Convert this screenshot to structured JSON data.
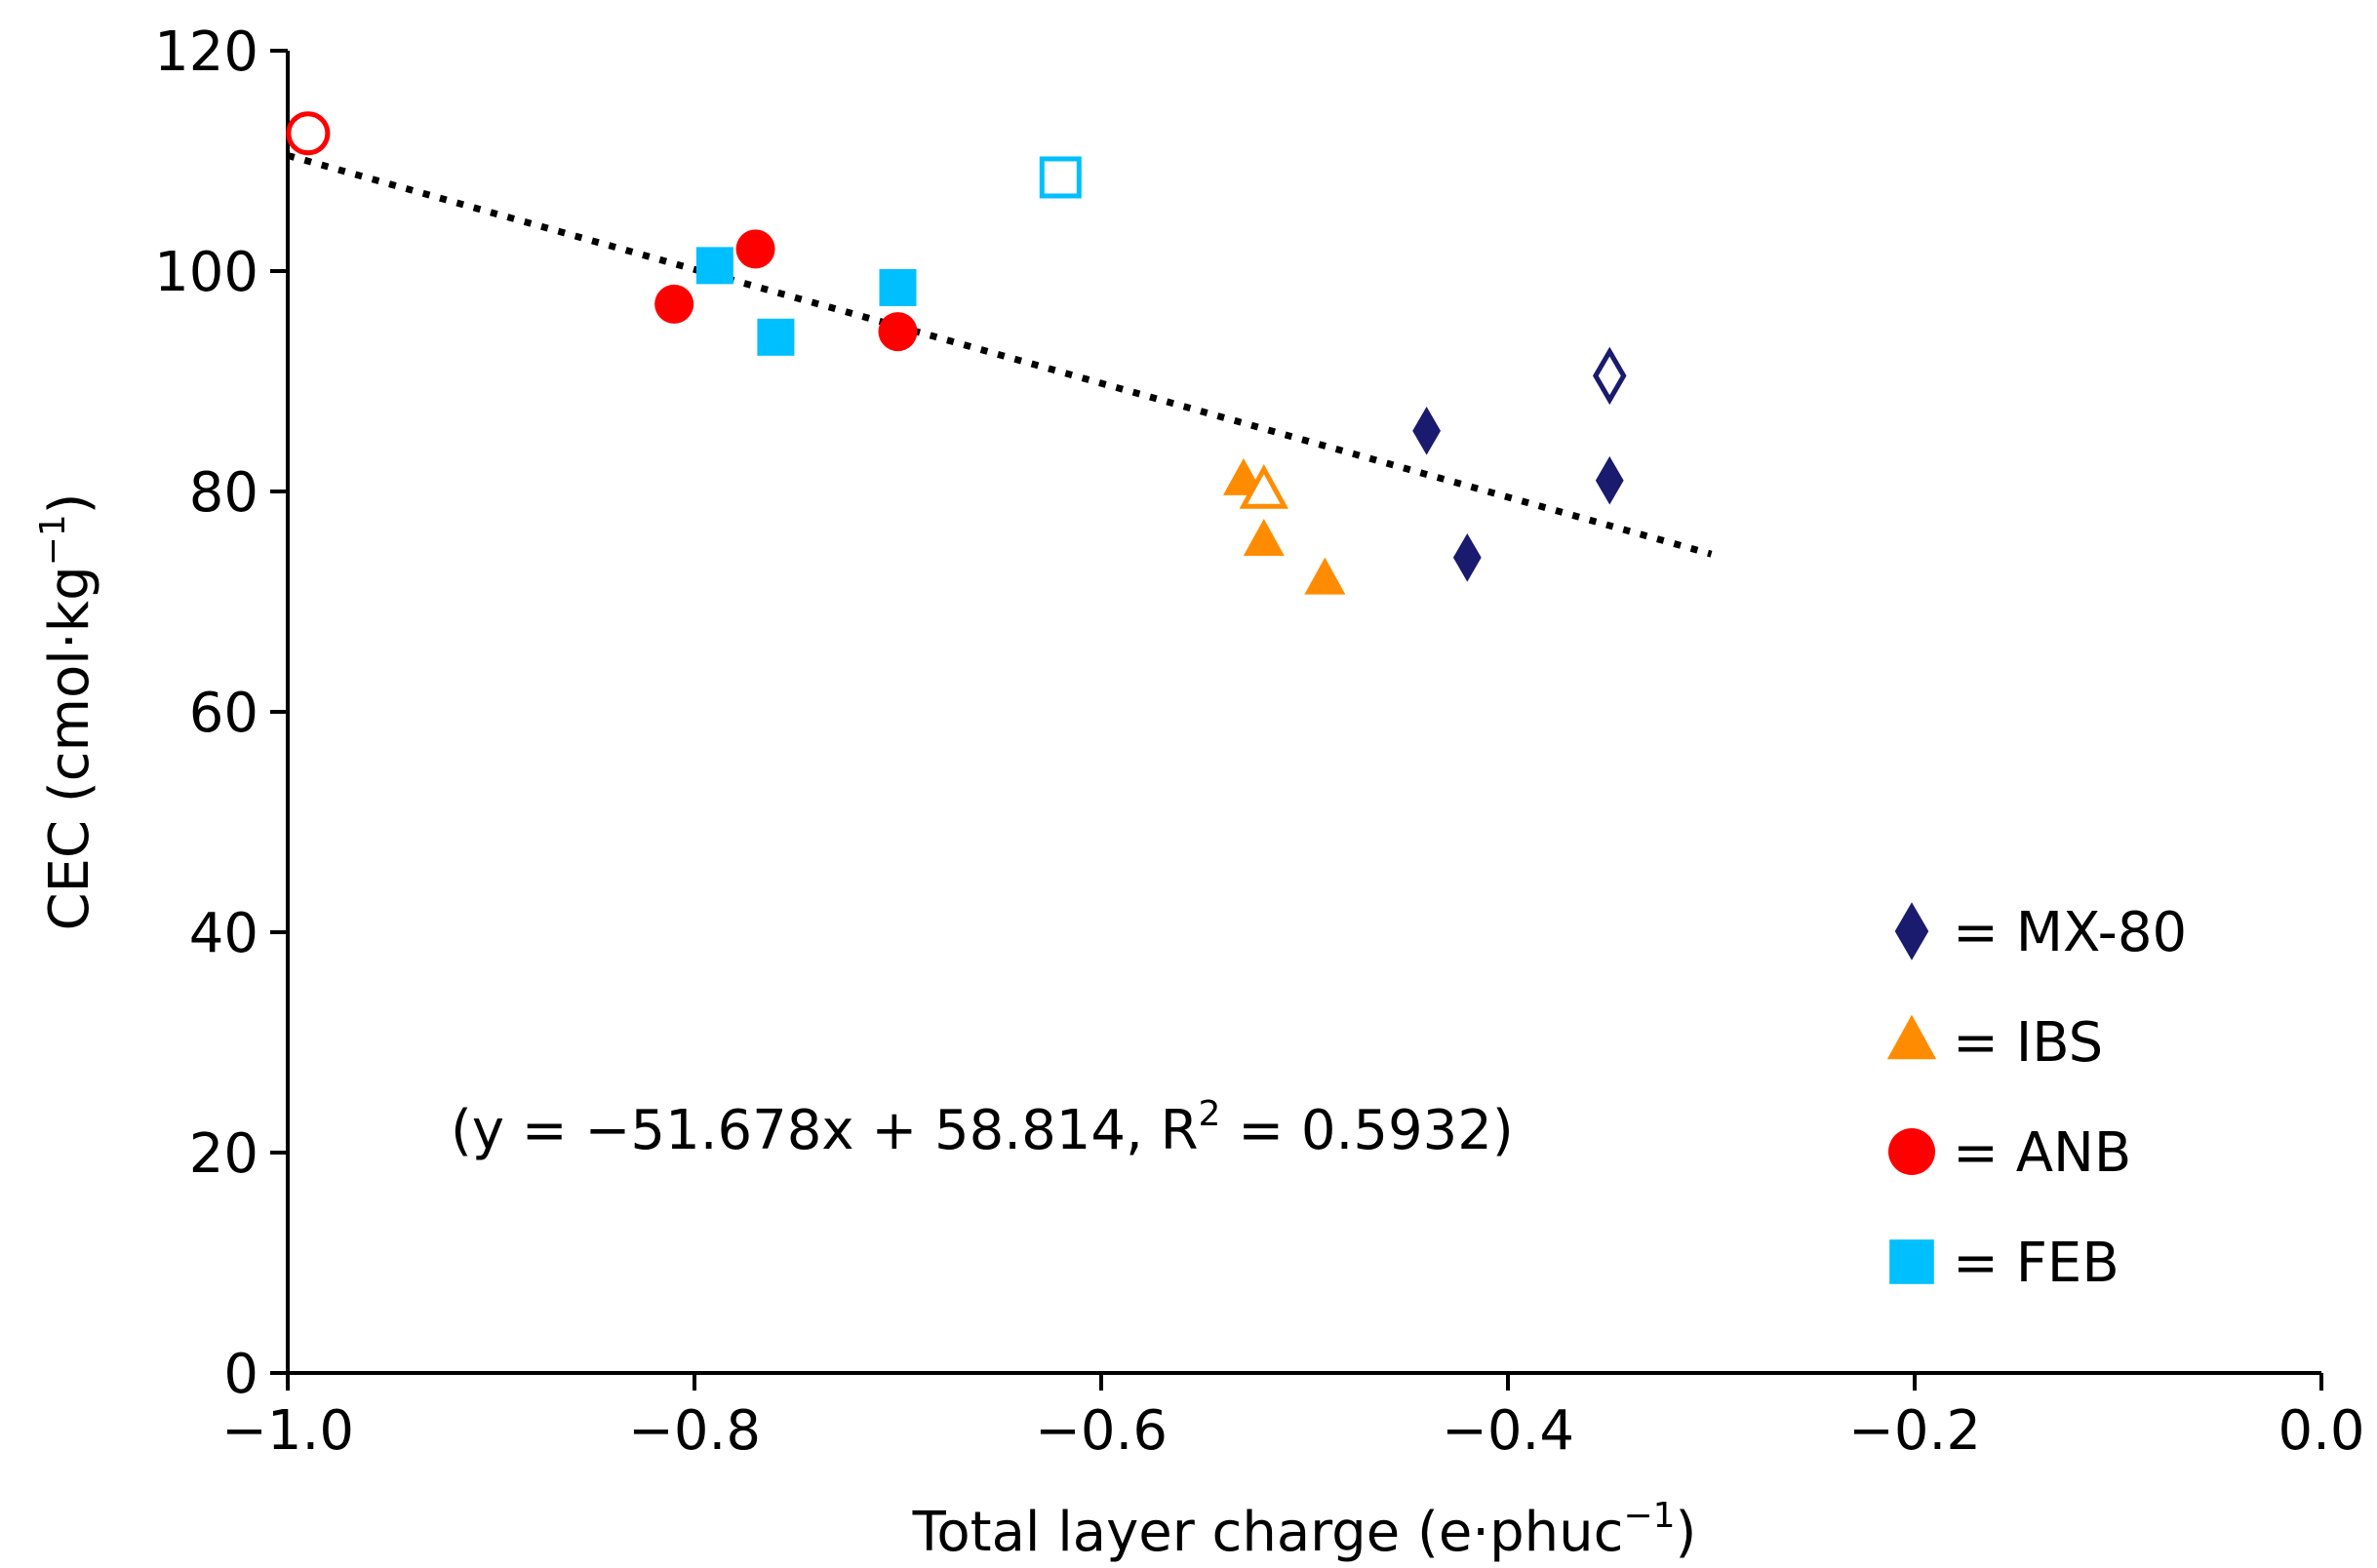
{
  "chart_data": {
    "type": "scatter",
    "title": "",
    "xlabel": {
      "main": "Total layer charge (e·phuc",
      "sup": "−1",
      "close": ")"
    },
    "ylabel": {
      "main": "CEC (cmol·kg",
      "sup": "−1",
      "close": ")"
    },
    "xlim": [
      -1.0,
      0.0
    ],
    "ylim": [
      0,
      120
    ],
    "xticks": [
      -1.0,
      -0.8,
      -0.6,
      -0.4,
      -0.2,
      0.0
    ],
    "xtick_labels": [
      "−1.0",
      "−0.8",
      "−0.6",
      "−0.4",
      "−0.2",
      "0.0"
    ],
    "yticks": [
      0,
      20,
      40,
      60,
      80,
      100,
      120
    ],
    "ytick_labels": [
      "0",
      "20",
      "40",
      "60",
      "80",
      "100",
      "120"
    ],
    "grid": false,
    "legend_position": "bottom-right",
    "series": [
      {
        "name": "MX-80",
        "legend_label": "= MX-80",
        "marker": "diamond",
        "color": "#1a1a6e",
        "points": [
          {
            "x": -0.44,
            "y": 85.5,
            "filled": true
          },
          {
            "x": -0.42,
            "y": 74.0,
            "filled": true
          },
          {
            "x": -0.35,
            "y": 81.0,
            "filled": true
          },
          {
            "x": -0.35,
            "y": 90.5,
            "filled": false
          }
        ]
      },
      {
        "name": "IBS",
        "legend_label": "= IBS",
        "marker": "triangle",
        "color": "#ff8c00",
        "points": [
          {
            "x": -0.53,
            "y": 81.0,
            "filled": true
          },
          {
            "x": -0.52,
            "y": 75.5,
            "filled": true
          },
          {
            "x": -0.49,
            "y": 72.0,
            "filled": true
          },
          {
            "x": -0.52,
            "y": 80.0,
            "filled": false
          }
        ]
      },
      {
        "name": "ANB",
        "legend_label": "= ANB",
        "marker": "circle",
        "color": "#ff0000",
        "points": [
          {
            "x": -0.81,
            "y": 97.0,
            "filled": true
          },
          {
            "x": -0.77,
            "y": 102.0,
            "filled": true
          },
          {
            "x": -0.7,
            "y": 94.5,
            "filled": true
          },
          {
            "x": -0.99,
            "y": 112.5,
            "filled": false
          }
        ]
      },
      {
        "name": "FEB",
        "legend_label": "= FEB",
        "marker": "square",
        "color": "#00bfff",
        "points": [
          {
            "x": -0.79,
            "y": 100.5,
            "filled": true
          },
          {
            "x": -0.76,
            "y": 94.0,
            "filled": true
          },
          {
            "x": -0.7,
            "y": 98.5,
            "filled": true
          },
          {
            "x": -0.62,
            "y": 108.5,
            "filled": false
          }
        ]
      }
    ],
    "trendline": {
      "slope": -51.678,
      "intercept": 58.814,
      "x_range": [
        -1.0,
        -0.3
      ],
      "style": "dotted",
      "color": "#000000"
    },
    "annotation": {
      "prefix": "(y = −51.678x + 58.814, R",
      "sup": "2",
      "suffix": " = 0.5932)"
    }
  }
}
